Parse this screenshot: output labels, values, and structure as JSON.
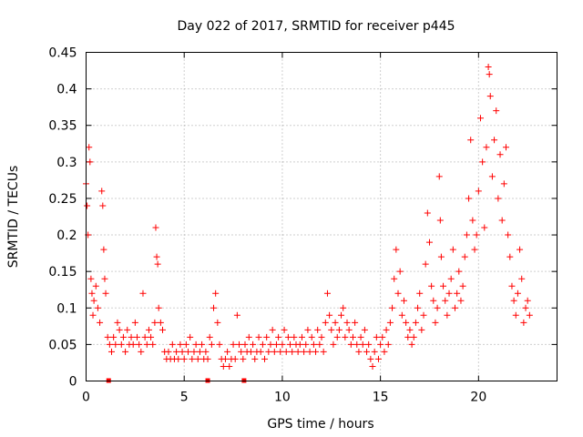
{
  "chart_data": {
    "type": "scatter",
    "title": "Day 022 of 2017, SRMTID for receiver p445",
    "xlabel": "GPS time / hours",
    "ylabel": "SRMTID / TECUs",
    "xlim": [
      0,
      24
    ],
    "ylim": [
      0,
      0.45
    ],
    "x_ticks": [
      0,
      5,
      10,
      15,
      20
    ],
    "x_tick_labels": [
      "0",
      "5",
      "10",
      "15",
      "20"
    ],
    "y_ticks": [
      0,
      0.05,
      0.1,
      0.15,
      0.2,
      0.25,
      0.3,
      0.35,
      0.4,
      0.45
    ],
    "y_tick_labels": [
      "0",
      "0.05",
      "0.1",
      "0.15",
      "0.2",
      "0.25",
      "0.3",
      "0.35",
      "0.4",
      "0.45"
    ],
    "grid": true,
    "marker": "plus",
    "color": "#ff0000",
    "series": [
      {
        "name": "SRMTID",
        "points": [
          [
            0.0,
            0.27
          ],
          [
            0.05,
            0.24
          ],
          [
            0.1,
            0.2
          ],
          [
            0.15,
            0.32
          ],
          [
            0.2,
            0.3
          ],
          [
            0.25,
            0.14
          ],
          [
            0.3,
            0.12
          ],
          [
            0.35,
            0.09
          ],
          [
            0.4,
            0.11
          ],
          [
            0.5,
            0.13
          ],
          [
            0.6,
            0.1
          ],
          [
            0.7,
            0.08
          ],
          [
            0.8,
            0.26
          ],
          [
            0.85,
            0.24
          ],
          [
            0.9,
            0.18
          ],
          [
            0.95,
            0.14
          ],
          [
            1.0,
            0.12
          ],
          [
            1.1,
            0.06
          ],
          [
            1.2,
            0.05
          ],
          [
            1.3,
            0.04
          ],
          [
            1.4,
            0.06
          ],
          [
            1.5,
            0.05
          ],
          [
            1.6,
            0.08
          ],
          [
            1.7,
            0.07
          ],
          [
            1.8,
            0.05
          ],
          [
            1.9,
            0.06
          ],
          [
            2.0,
            0.04
          ],
          [
            2.1,
            0.07
          ],
          [
            2.2,
            0.05
          ],
          [
            2.3,
            0.06
          ],
          [
            2.4,
            0.05
          ],
          [
            2.5,
            0.08
          ],
          [
            2.6,
            0.06
          ],
          [
            2.7,
            0.05
          ],
          [
            2.8,
            0.04
          ],
          [
            2.9,
            0.12
          ],
          [
            3.0,
            0.06
          ],
          [
            3.1,
            0.05
          ],
          [
            3.2,
            0.07
          ],
          [
            3.3,
            0.06
          ],
          [
            3.4,
            0.05
          ],
          [
            3.5,
            0.08
          ],
          [
            3.55,
            0.21
          ],
          [
            3.6,
            0.17
          ],
          [
            3.65,
            0.16
          ],
          [
            3.7,
            0.1
          ],
          [
            3.8,
            0.08
          ],
          [
            3.9,
            0.07
          ],
          [
            4.0,
            0.04
          ],
          [
            4.1,
            0.03
          ],
          [
            4.2,
            0.04
          ],
          [
            4.3,
            0.03
          ],
          [
            4.4,
            0.05
          ],
          [
            4.5,
            0.03
          ],
          [
            4.6,
            0.04
          ],
          [
            4.7,
            0.03
          ],
          [
            4.8,
            0.05
          ],
          [
            4.9,
            0.04
          ],
          [
            5.0,
            0.03
          ],
          [
            5.1,
            0.05
          ],
          [
            5.2,
            0.04
          ],
          [
            5.3,
            0.06
          ],
          [
            5.4,
            0.03
          ],
          [
            5.5,
            0.04
          ],
          [
            5.6,
            0.05
          ],
          [
            5.7,
            0.03
          ],
          [
            5.8,
            0.04
          ],
          [
            5.9,
            0.05
          ],
          [
            6.0,
            0.03
          ],
          [
            6.1,
            0.04
          ],
          [
            6.2,
            0.03
          ],
          [
            6.3,
            0.06
          ],
          [
            6.4,
            0.05
          ],
          [
            6.5,
            0.1
          ],
          [
            6.6,
            0.12
          ],
          [
            6.7,
            0.08
          ],
          [
            6.8,
            0.05
          ],
          [
            6.9,
            0.03
          ],
          [
            7.0,
            0.02
          ],
          [
            7.1,
            0.03
          ],
          [
            7.2,
            0.04
          ],
          [
            7.3,
            0.02
          ],
          [
            7.4,
            0.03
          ],
          [
            7.5,
            0.05
          ],
          [
            7.6,
            0.03
          ],
          [
            7.7,
            0.09
          ],
          [
            7.8,
            0.05
          ],
          [
            7.9,
            0.04
          ],
          [
            8.0,
            0.03
          ],
          [
            8.1,
            0.05
          ],
          [
            8.2,
            0.04
          ],
          [
            8.3,
            0.06
          ],
          [
            8.4,
            0.04
          ],
          [
            8.5,
            0.05
          ],
          [
            8.6,
            0.03
          ],
          [
            8.7,
            0.04
          ],
          [
            8.8,
            0.06
          ],
          [
            8.9,
            0.04
          ],
          [
            9.0,
            0.05
          ],
          [
            9.1,
            0.03
          ],
          [
            9.2,
            0.06
          ],
          [
            9.3,
            0.04
          ],
          [
            9.4,
            0.05
          ],
          [
            9.5,
            0.07
          ],
          [
            9.6,
            0.04
          ],
          [
            9.7,
            0.05
          ],
          [
            9.8,
            0.06
          ],
          [
            9.9,
            0.04
          ],
          [
            10.0,
            0.05
          ],
          [
            10.1,
            0.07
          ],
          [
            10.2,
            0.04
          ],
          [
            10.3,
            0.06
          ],
          [
            10.4,
            0.05
          ],
          [
            10.5,
            0.04
          ],
          [
            10.6,
            0.06
          ],
          [
            10.7,
            0.05
          ],
          [
            10.8,
            0.04
          ],
          [
            10.9,
            0.05
          ],
          [
            11.0,
            0.06
          ],
          [
            11.1,
            0.04
          ],
          [
            11.2,
            0.05
          ],
          [
            11.3,
            0.07
          ],
          [
            11.4,
            0.04
          ],
          [
            11.5,
            0.06
          ],
          [
            11.6,
            0.05
          ],
          [
            11.7,
            0.04
          ],
          [
            11.8,
            0.07
          ],
          [
            11.9,
            0.05
          ],
          [
            12.0,
            0.06
          ],
          [
            12.1,
            0.04
          ],
          [
            12.2,
            0.08
          ],
          [
            12.3,
            0.12
          ],
          [
            12.4,
            0.09
          ],
          [
            12.5,
            0.07
          ],
          [
            12.6,
            0.05
          ],
          [
            12.7,
            0.08
          ],
          [
            12.8,
            0.06
          ],
          [
            12.9,
            0.07
          ],
          [
            13.0,
            0.09
          ],
          [
            13.1,
            0.1
          ],
          [
            13.2,
            0.06
          ],
          [
            13.3,
            0.08
          ],
          [
            13.4,
            0.07
          ],
          [
            13.5,
            0.05
          ],
          [
            13.6,
            0.06
          ],
          [
            13.7,
            0.08
          ],
          [
            13.8,
            0.05
          ],
          [
            13.9,
            0.04
          ],
          [
            14.0,
            0.06
          ],
          [
            14.1,
            0.05
          ],
          [
            14.2,
            0.07
          ],
          [
            14.3,
            0.04
          ],
          [
            14.4,
            0.05
          ],
          [
            14.5,
            0.03
          ],
          [
            14.6,
            0.02
          ],
          [
            14.7,
            0.04
          ],
          [
            14.8,
            0.06
          ],
          [
            14.9,
            0.03
          ],
          [
            15.0,
            0.05
          ],
          [
            15.1,
            0.06
          ],
          [
            15.2,
            0.04
          ],
          [
            15.3,
            0.07
          ],
          [
            15.4,
            0.05
          ],
          [
            15.5,
            0.08
          ],
          [
            15.6,
            0.1
          ],
          [
            15.7,
            0.14
          ],
          [
            15.8,
            0.18
          ],
          [
            15.9,
            0.12
          ],
          [
            16.0,
            0.15
          ],
          [
            16.1,
            0.09
          ],
          [
            16.2,
            0.11
          ],
          [
            16.3,
            0.08
          ],
          [
            16.4,
            0.06
          ],
          [
            16.5,
            0.07
          ],
          [
            16.6,
            0.05
          ],
          [
            16.7,
            0.06
          ],
          [
            16.8,
            0.08
          ],
          [
            16.9,
            0.1
          ],
          [
            17.0,
            0.12
          ],
          [
            17.1,
            0.07
          ],
          [
            17.2,
            0.09
          ],
          [
            17.3,
            0.16
          ],
          [
            17.4,
            0.23
          ],
          [
            17.5,
            0.19
          ],
          [
            17.6,
            0.13
          ],
          [
            17.7,
            0.11
          ],
          [
            17.8,
            0.08
          ],
          [
            17.9,
            0.1
          ],
          [
            18.0,
            0.28
          ],
          [
            18.05,
            0.22
          ],
          [
            18.1,
            0.17
          ],
          [
            18.2,
            0.13
          ],
          [
            18.3,
            0.11
          ],
          [
            18.4,
            0.09
          ],
          [
            18.5,
            0.12
          ],
          [
            18.6,
            0.14
          ],
          [
            18.7,
            0.18
          ],
          [
            18.8,
            0.1
          ],
          [
            18.9,
            0.12
          ],
          [
            19.0,
            0.15
          ],
          [
            19.1,
            0.11
          ],
          [
            19.2,
            0.13
          ],
          [
            19.3,
            0.17
          ],
          [
            19.4,
            0.2
          ],
          [
            19.5,
            0.25
          ],
          [
            19.6,
            0.33
          ],
          [
            19.7,
            0.22
          ],
          [
            19.8,
            0.18
          ],
          [
            19.9,
            0.2
          ],
          [
            20.0,
            0.26
          ],
          [
            20.1,
            0.36
          ],
          [
            20.2,
            0.3
          ],
          [
            20.3,
            0.21
          ],
          [
            20.4,
            0.32
          ],
          [
            20.5,
            0.43
          ],
          [
            20.55,
            0.42
          ],
          [
            20.6,
            0.39
          ],
          [
            20.7,
            0.28
          ],
          [
            20.8,
            0.33
          ],
          [
            20.9,
            0.37
          ],
          [
            21.0,
            0.25
          ],
          [
            21.1,
            0.31
          ],
          [
            21.2,
            0.22
          ],
          [
            21.3,
            0.27
          ],
          [
            21.4,
            0.32
          ],
          [
            21.5,
            0.2
          ],
          [
            21.6,
            0.17
          ],
          [
            21.7,
            0.13
          ],
          [
            21.8,
            0.11
          ],
          [
            21.9,
            0.09
          ],
          [
            22.0,
            0.12
          ],
          [
            22.1,
            0.18
          ],
          [
            22.2,
            0.14
          ],
          [
            22.3,
            0.08
          ],
          [
            22.4,
            0.1
          ],
          [
            22.5,
            0.11
          ],
          [
            22.6,
            0.09
          ]
        ]
      }
    ],
    "zero_markers_x": [
      1.15,
      6.2,
      8.05
    ]
  }
}
